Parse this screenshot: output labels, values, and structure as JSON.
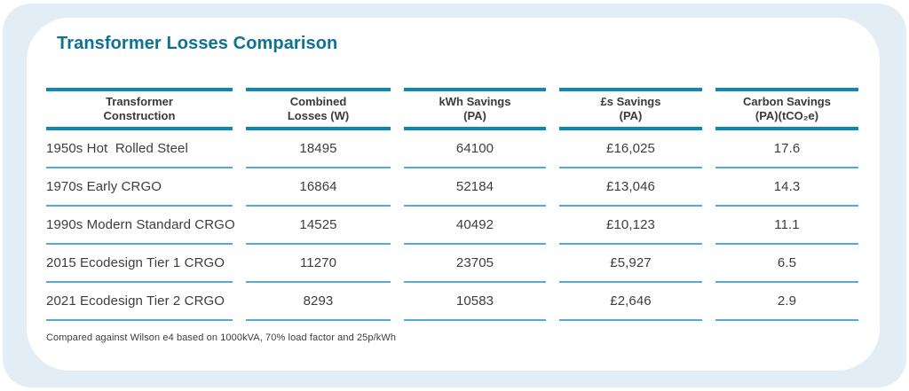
{
  "title": "Transformer Losses Comparison",
  "footnote": "Compared against Wilson e4 based on 1000kVA, 70% load factor and 25p/kWh",
  "colors": {
    "title_teal": "#0f7293",
    "header_bar": "#0d87b6",
    "row_line": "#54acd3",
    "text": "#3d3d3d",
    "outer_background": "#e3edf5",
    "card_background": "#ffffff"
  },
  "table": {
    "headers": [
      {
        "line1": "Transformer",
        "line2": "Construction"
      },
      {
        "line1": "Combined",
        "line2": "Losses (W)"
      },
      {
        "line1": "kWh Savings",
        "line2": "(PA)"
      },
      {
        "line1": "£s Savings",
        "line2": "(PA)"
      },
      {
        "line1": "Carbon Savings",
        "line2": "(PA)(tCO₂e)"
      }
    ],
    "rows": [
      {
        "construction": "1950s Hot  Rolled Steel",
        "combined_losses_w": "18495",
        "kwh_savings_pa": "64100",
        "gbp_savings_pa": "£16,025",
        "carbon_savings_pa": "17.6"
      },
      {
        "construction": "1970s Early CRGO",
        "combined_losses_w": "16864",
        "kwh_savings_pa": "52184",
        "gbp_savings_pa": "£13,046",
        "carbon_savings_pa": "14.3"
      },
      {
        "construction": "1990s Modern Standard CRGO",
        "combined_losses_w": "14525",
        "kwh_savings_pa": "40492",
        "gbp_savings_pa": "£10,123",
        "carbon_savings_pa": "11.1"
      },
      {
        "construction": "2015 Ecodesign Tier 1 CRGO",
        "combined_losses_w": "11270",
        "kwh_savings_pa": "23705",
        "gbp_savings_pa": "£5,927",
        "carbon_savings_pa": "6.5"
      },
      {
        "construction": "2021 Ecodesign Tier 2 CRGO",
        "combined_losses_w": "8293",
        "kwh_savings_pa": "10583",
        "gbp_savings_pa": "£2,646",
        "carbon_savings_pa": "2.9"
      }
    ]
  }
}
